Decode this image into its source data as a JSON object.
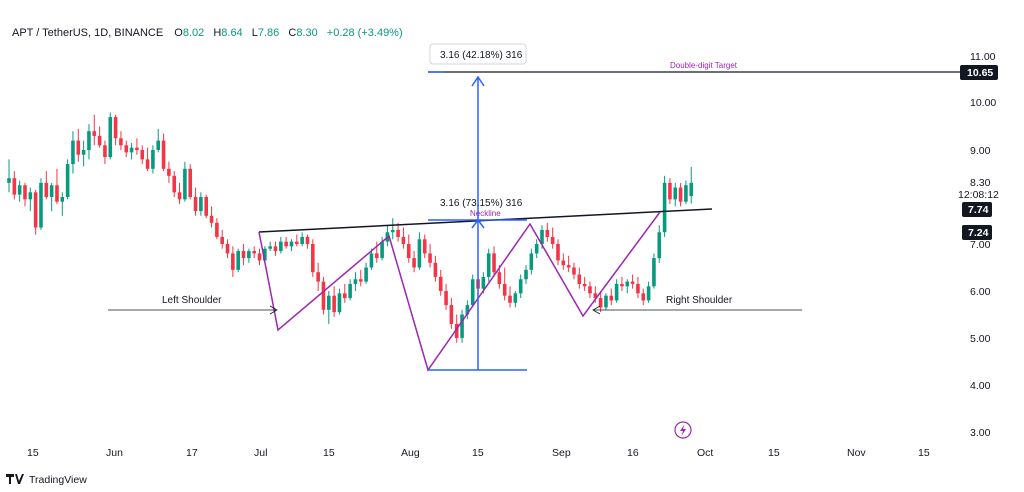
{
  "header": {
    "symbol": "APT / TetherUS, 1D, BINANCE",
    "open_label": "O",
    "open": "8.02",
    "high_label": "H",
    "high": "8.64",
    "low_label": "L",
    "low": "7.86",
    "close_label": "C",
    "close": "8.30",
    "change": "+0.28 (+3.49%)"
  },
  "colors": {
    "up": "#089981",
    "down": "#f23645",
    "pattern": "#9c27b0",
    "measure": "#2962ff",
    "line": "#131722"
  },
  "price_axis": {
    "ticks": [
      "11.00",
      "10.00",
      "9.00",
      "8.30",
      "7.00",
      "6.00",
      "5.00",
      "4.00",
      "3.00"
    ],
    "countdown": "12:08:12",
    "badges": [
      {
        "label": "10.65",
        "style": "dark"
      },
      {
        "label": "7.74",
        "style": "dark"
      },
      {
        "label": "7.24",
        "style": "dark"
      }
    ]
  },
  "time_axis": {
    "ticks": [
      "15",
      "Jun",
      "17",
      "Jul",
      "15",
      "Aug",
      "15",
      "Sep",
      "16",
      "Oct",
      "15",
      "Nov",
      "15"
    ]
  },
  "annotations": {
    "left_shoulder": "Left Shoulder",
    "right_shoulder": "Right Shoulder",
    "neckline": "Neckline",
    "target": "Double-digit Target",
    "measure_top": "3.16 (42.18%) 316",
    "measure_mid": "3.16 (73.15%) 316"
  },
  "footer": {
    "brand": "TradingView"
  },
  "chart_data": {
    "type": "candlestick",
    "title": "APT / TetherUS, 1D, BINANCE",
    "ylim": [
      2.6,
      11.6
    ],
    "y_scale": "linear",
    "grid": false,
    "levels": {
      "double_digit_target": 10.65,
      "neckline_right": 7.74,
      "support": 7.24
    },
    "head_and_shoulders": {
      "left_shoulder_low": 5.15,
      "head_low": 4.32,
      "right_shoulder_low": 5.48,
      "neckline_start": 7.27,
      "neckline_end": 7.74
    },
    "measured_move": {
      "from": 4.32,
      "to": 10.65,
      "height": 3.16
    },
    "candles": [
      [
        8.3,
        8.8,
        8.1,
        8.4
      ],
      [
        8.4,
        8.55,
        7.95,
        8.05
      ],
      [
        8.05,
        8.35,
        7.9,
        8.25
      ],
      [
        8.25,
        8.3,
        7.8,
        7.95
      ],
      [
        7.95,
        8.2,
        7.7,
        8.1
      ],
      [
        8.1,
        8.15,
        7.2,
        7.35
      ],
      [
        7.35,
        8.4,
        7.3,
        8.3
      ],
      [
        8.3,
        8.55,
        7.95,
        8.0
      ],
      [
        8.0,
        8.3,
        7.7,
        8.25
      ],
      [
        8.25,
        8.6,
        7.85,
        7.9
      ],
      [
        7.9,
        8.1,
        7.6,
        8.0
      ],
      [
        8.0,
        8.8,
        7.95,
        8.7
      ],
      [
        8.7,
        9.4,
        8.5,
        9.2
      ],
      [
        9.2,
        9.45,
        8.75,
        8.9
      ],
      [
        8.9,
        9.2,
        8.65,
        9.0
      ],
      [
        9.0,
        9.55,
        8.8,
        9.4
      ],
      [
        9.4,
        9.75,
        9.1,
        9.3
      ],
      [
        9.3,
        9.5,
        9.05,
        9.1
      ],
      [
        9.1,
        9.2,
        8.7,
        8.85
      ],
      [
        8.85,
        9.8,
        8.8,
        9.7
      ],
      [
        9.7,
        9.75,
        9.1,
        9.25
      ],
      [
        9.25,
        9.4,
        9.0,
        9.1
      ],
      [
        9.1,
        9.2,
        8.85,
        8.95
      ],
      [
        8.95,
        9.15,
        8.8,
        9.05
      ],
      [
        9.05,
        9.25,
        8.9,
        9.0
      ],
      [
        9.0,
        9.1,
        8.7,
        8.8
      ],
      [
        8.8,
        9.05,
        8.55,
        8.6
      ],
      [
        8.6,
        9.1,
        8.5,
        9.0
      ],
      [
        9.0,
        9.45,
        8.95,
        9.2
      ],
      [
        9.2,
        9.35,
        8.55,
        8.6
      ],
      [
        8.6,
        8.75,
        8.3,
        8.45
      ],
      [
        8.45,
        8.55,
        8.0,
        8.1
      ],
      [
        8.1,
        8.3,
        7.85,
        7.95
      ],
      [
        7.95,
        8.75,
        7.9,
        8.6
      ],
      [
        8.6,
        8.7,
        7.95,
        8.0
      ],
      [
        8.0,
        8.2,
        7.6,
        7.7
      ],
      [
        7.7,
        8.1,
        7.6,
        8.0
      ],
      [
        8.0,
        8.05,
        7.55,
        7.6
      ],
      [
        7.6,
        7.8,
        7.35,
        7.45
      ],
      [
        7.45,
        7.55,
        7.1,
        7.15
      ],
      [
        7.15,
        7.3,
        6.9,
        7.0
      ],
      [
        7.0,
        7.1,
        6.7,
        6.8
      ],
      [
        6.8,
        6.95,
        6.3,
        6.45
      ],
      [
        6.45,
        6.9,
        6.4,
        6.85
      ],
      [
        6.85,
        7.0,
        6.55,
        6.7
      ],
      [
        6.7,
        6.9,
        6.6,
        6.85
      ],
      [
        6.85,
        6.95,
        6.7,
        6.8
      ],
      [
        6.8,
        6.9,
        6.55,
        6.65
      ],
      [
        6.65,
        6.95,
        6.6,
        6.9
      ],
      [
        6.9,
        7.05,
        6.85,
        6.95
      ],
      [
        6.95,
        7.05,
        6.75,
        6.85
      ],
      [
        6.85,
        7.15,
        6.8,
        7.05
      ],
      [
        7.05,
        7.15,
        6.9,
        6.95
      ],
      [
        6.95,
        7.1,
        6.85,
        7.05
      ],
      [
        7.05,
        7.2,
        6.95,
        7.0
      ],
      [
        7.0,
        7.25,
        6.95,
        7.15
      ],
      [
        7.15,
        7.2,
        6.9,
        7.0
      ],
      [
        7.0,
        7.1,
        6.3,
        6.4
      ],
      [
        6.4,
        6.6,
        6.0,
        6.2
      ],
      [
        6.2,
        6.3,
        5.5,
        5.6
      ],
      [
        5.6,
        6.0,
        5.3,
        5.9
      ],
      [
        5.9,
        6.1,
        5.45,
        5.55
      ],
      [
        5.55,
        6.05,
        5.5,
        5.95
      ],
      [
        5.95,
        6.15,
        5.75,
        5.85
      ],
      [
        5.85,
        6.25,
        5.8,
        6.15
      ],
      [
        6.15,
        6.4,
        6.0,
        6.25
      ],
      [
        6.25,
        6.45,
        6.1,
        6.2
      ],
      [
        6.2,
        6.6,
        6.15,
        6.5
      ],
      [
        6.5,
        6.9,
        6.45,
        6.8
      ],
      [
        6.8,
        7.05,
        6.6,
        6.7
      ],
      [
        6.7,
        7.15,
        6.65,
        7.05
      ],
      [
        7.05,
        7.4,
        6.95,
        7.25
      ],
      [
        7.25,
        7.55,
        7.1,
        7.3
      ],
      [
        7.3,
        7.45,
        7.05,
        7.15
      ],
      [
        7.15,
        7.35,
        6.9,
        7.0
      ],
      [
        7.0,
        7.2,
        6.6,
        6.7
      ],
      [
        6.7,
        6.85,
        6.4,
        6.5
      ],
      [
        6.5,
        7.25,
        6.45,
        7.1
      ],
      [
        7.1,
        7.2,
        6.7,
        6.8
      ],
      [
        6.8,
        7.0,
        6.5,
        6.6
      ],
      [
        6.6,
        6.75,
        6.2,
        6.3
      ],
      [
        6.3,
        6.45,
        5.9,
        6.0
      ],
      [
        6.0,
        6.15,
        5.6,
        5.7
      ],
      [
        5.7,
        5.85,
        5.2,
        5.3
      ],
      [
        5.3,
        5.5,
        4.9,
        5.0
      ],
      [
        5.0,
        5.6,
        4.9,
        5.5
      ],
      [
        5.5,
        5.8,
        5.4,
        5.7
      ],
      [
        5.7,
        6.35,
        5.65,
        6.25
      ],
      [
        6.25,
        6.5,
        5.9,
        6.05
      ],
      [
        6.05,
        6.4,
        5.95,
        6.3
      ],
      [
        6.3,
        6.9,
        6.2,
        6.8
      ],
      [
        6.8,
        6.95,
        6.3,
        6.4
      ],
      [
        6.4,
        6.55,
        6.05,
        6.15
      ],
      [
        6.15,
        6.5,
        5.8,
        5.9
      ],
      [
        5.9,
        6.1,
        5.65,
        5.75
      ],
      [
        5.75,
        6.0,
        5.65,
        5.95
      ],
      [
        5.95,
        6.35,
        5.85,
        6.25
      ],
      [
        6.25,
        6.55,
        6.15,
        6.45
      ],
      [
        6.45,
        6.9,
        6.35,
        6.8
      ],
      [
        6.8,
        7.1,
        6.7,
        7.0
      ],
      [
        7.0,
        7.4,
        6.9,
        7.3
      ],
      [
        7.3,
        7.45,
        7.05,
        7.15
      ],
      [
        7.15,
        7.35,
        6.9,
        7.0
      ],
      [
        7.0,
        7.1,
        6.55,
        6.65
      ],
      [
        6.65,
        6.8,
        6.45,
        6.55
      ],
      [
        6.55,
        6.75,
        6.4,
        6.5
      ],
      [
        6.5,
        6.6,
        6.25,
        6.35
      ],
      [
        6.35,
        6.5,
        6.05,
        6.15
      ],
      [
        6.15,
        6.3,
        6.0,
        6.1
      ],
      [
        6.1,
        6.2,
        5.85,
        5.95
      ],
      [
        5.95,
        6.1,
        5.75,
        5.85
      ],
      [
        5.85,
        6.0,
        5.55,
        5.65
      ],
      [
        5.65,
        5.95,
        5.6,
        5.9
      ],
      [
        5.9,
        6.05,
        5.7,
        5.8
      ],
      [
        5.8,
        6.25,
        5.75,
        6.15
      ],
      [
        6.15,
        6.3,
        6.0,
        6.1
      ],
      [
        6.1,
        6.25,
        5.95,
        6.2
      ],
      [
        6.2,
        6.35,
        6.05,
        6.15
      ],
      [
        6.15,
        6.3,
        5.85,
        5.95
      ],
      [
        5.95,
        6.05,
        5.7,
        5.8
      ],
      [
        5.8,
        6.2,
        5.75,
        6.1
      ],
      [
        6.1,
        6.8,
        6.05,
        6.7
      ],
      [
        6.7,
        7.4,
        6.6,
        7.25
      ],
      [
        7.25,
        8.45,
        7.15,
        8.3
      ],
      [
        8.3,
        8.4,
        7.85,
        7.95
      ],
      [
        7.95,
        8.3,
        7.8,
        8.2
      ],
      [
        8.2,
        8.3,
        7.8,
        7.9
      ],
      [
        7.9,
        8.35,
        7.85,
        8.25
      ],
      [
        8.02,
        8.64,
        7.86,
        8.3
      ]
    ]
  }
}
